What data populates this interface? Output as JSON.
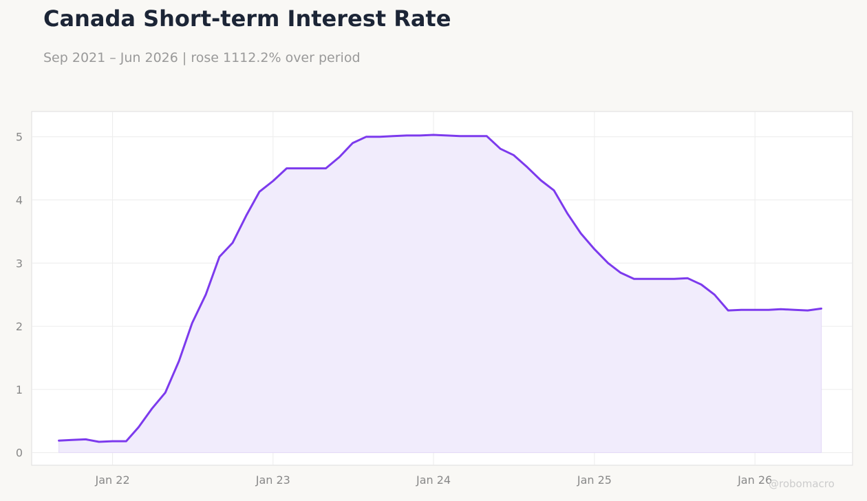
{
  "title": "Canada Short-term Interest Rate",
  "subtitle": "Sep 2021 – Jun 2026 | rose 1112.2% over period",
  "watermark": "@robomacro",
  "colors": {
    "line": "#7c3aed",
    "fill": "#f1ecfc",
    "background": "#f9f8f5",
    "plot_background": "#ffffff",
    "grid": "#ececec",
    "tick_text": "#888888"
  },
  "chart_data": {
    "type": "area",
    "grid": true,
    "ylim": [
      -0.2,
      5.4
    ],
    "xlim": [
      "2021-07-01",
      "2026-08-11"
    ],
    "y_ticks": [
      0,
      1,
      2,
      3,
      4,
      5
    ],
    "y_tick_labels": [
      "0",
      "1",
      "2",
      "3",
      "4",
      "5"
    ],
    "x_ticks": [
      "2022-01-01",
      "2023-01-01",
      "2024-01-01",
      "2025-01-01",
      "2026-01-01"
    ],
    "x_tick_labels": [
      "Jan 22",
      "Jan 23",
      "Jan 24",
      "Jan 25",
      "Jan 26"
    ],
    "series": [
      {
        "x": [
          "2021-09",
          "2021-10",
          "2021-11",
          "2021-12",
          "2022-01",
          "2022-02",
          "2022-03",
          "2022-04",
          "2022-05",
          "2022-06",
          "2022-07",
          "2022-08",
          "2022-09",
          "2022-10",
          "2022-11",
          "2022-12",
          "2023-01",
          "2023-02",
          "2023-03",
          "2023-04",
          "2023-05",
          "2023-06",
          "2023-07",
          "2023-08",
          "2023-09",
          "2023-10",
          "2023-11",
          "2023-12",
          "2024-01",
          "2024-02",
          "2024-03",
          "2024-04",
          "2024-05",
          "2024-06",
          "2024-07",
          "2024-08",
          "2024-09",
          "2024-10",
          "2024-11",
          "2024-12",
          "2025-01",
          "2025-02",
          "2025-03",
          "2025-04",
          "2025-05",
          "2025-06",
          "2025-07",
          "2025-08",
          "2025-09",
          "2025-10",
          "2025-11",
          "2025-12",
          "2026-01",
          "2026-02",
          "2026-03",
          "2026-04",
          "2026-05",
          "2026-06"
        ],
        "values": [
          0.19,
          0.2,
          0.21,
          0.17,
          0.18,
          0.18,
          0.4,
          0.7,
          0.95,
          1.45,
          2.05,
          2.5,
          3.1,
          3.32,
          3.75,
          4.13,
          4.3,
          4.5,
          4.5,
          4.5,
          4.5,
          4.68,
          4.9,
          5.0,
          5.0,
          5.01,
          5.02,
          5.02,
          5.03,
          5.02,
          5.01,
          5.01,
          5.01,
          4.81,
          4.71,
          4.52,
          4.31,
          4.15,
          3.78,
          3.47,
          3.22,
          3.0,
          2.85,
          2.75,
          2.75,
          2.75,
          2.75,
          2.76,
          2.66,
          2.5,
          2.25,
          2.26,
          2.26,
          2.26,
          2.27,
          2.26,
          2.25,
          2.28
        ]
      }
    ]
  }
}
